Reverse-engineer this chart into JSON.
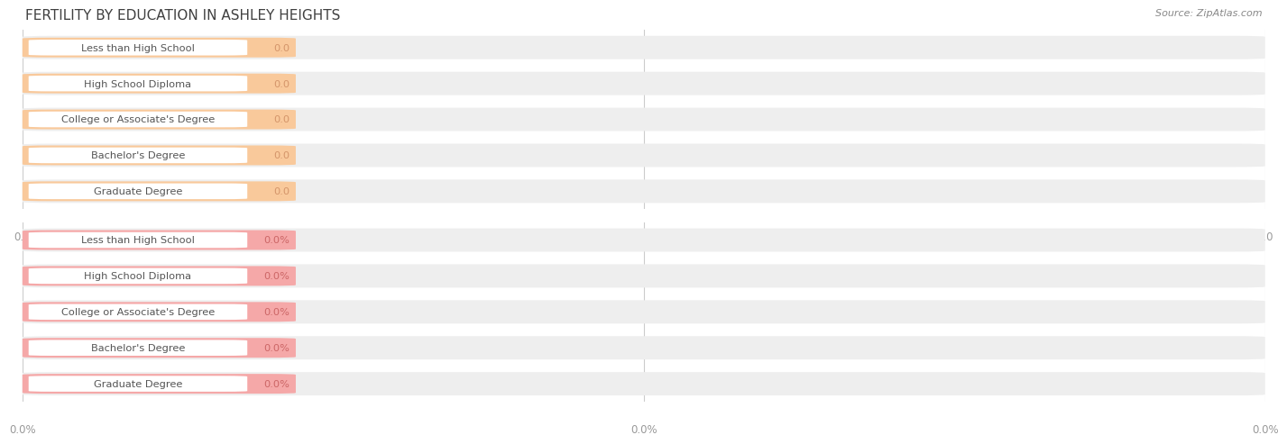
{
  "title": "FERTILITY BY EDUCATION IN ASHLEY HEIGHTS",
  "source": "Source: ZipAtlas.com",
  "categories": [
    "Less than High School",
    "High School Diploma",
    "College or Associate's Degree",
    "Bachelor's Degree",
    "Graduate Degree"
  ],
  "top_values": [
    0.0,
    0.0,
    0.0,
    0.0,
    0.0
  ],
  "top_labels": [
    "0.0",
    "0.0",
    "0.0",
    "0.0",
    "0.0"
  ],
  "bottom_values": [
    0.0,
    0.0,
    0.0,
    0.0,
    0.0
  ],
  "bottom_labels": [
    "0.0%",
    "0.0%",
    "0.0%",
    "0.0%",
    "0.0%"
  ],
  "top_bar_color": "#f9c99b",
  "top_bar_bg": "#eeeeee",
  "top_label_color": "#d4956a",
  "bottom_bar_color": "#f5a8a8",
  "bottom_bar_bg": "#eeeeee",
  "bottom_label_color": "#cc6666",
  "title_color": "#404040",
  "background_color": "#ffffff",
  "top_axis_label": "0.0",
  "bottom_axis_label": "0.0%",
  "grid_color": "#cccccc",
  "source_color": "#888888",
  "label_text_color": "#555555"
}
